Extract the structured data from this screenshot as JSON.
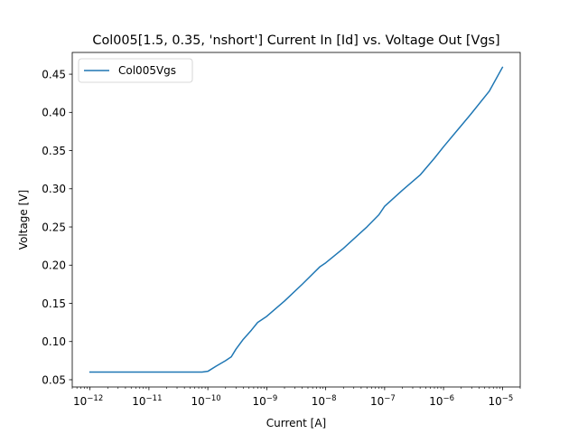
{
  "chart_data": {
    "type": "line",
    "title": "Col005[1.5, 0.35, 'nshort'] Current In [Id] vs. Voltage Out [Vgs]",
    "xlabel": "Current [A]",
    "ylabel": "Voltage [V]",
    "xscale": "log",
    "xlim": [
      5e-13,
      2e-05
    ],
    "ylim": [
      0.0405,
      0.4785
    ],
    "x_ticks": [
      {
        "value": 1e-12,
        "mantissa": "10",
        "exponent": "−12"
      },
      {
        "value": 1e-11,
        "mantissa": "10",
        "exponent": "−11"
      },
      {
        "value": 1e-10,
        "mantissa": "10",
        "exponent": "−10"
      },
      {
        "value": 1e-09,
        "mantissa": "10",
        "exponent": "−9"
      },
      {
        "value": 1e-08,
        "mantissa": "10",
        "exponent": "−8"
      },
      {
        "value": 1e-07,
        "mantissa": "10",
        "exponent": "−7"
      },
      {
        "value": 1e-06,
        "mantissa": "10",
        "exponent": "−6"
      },
      {
        "value": 1e-05,
        "mantissa": "10",
        "exponent": "−5"
      }
    ],
    "y_ticks": [
      {
        "value": 0.05,
        "label": "0.05"
      },
      {
        "value": 0.1,
        "label": "0.10"
      },
      {
        "value": 0.15,
        "label": "0.15"
      },
      {
        "value": 0.2,
        "label": "0.20"
      },
      {
        "value": 0.25,
        "label": "0.25"
      },
      {
        "value": 0.3,
        "label": "0.30"
      },
      {
        "value": 0.35,
        "label": "0.35"
      },
      {
        "value": 0.4,
        "label": "0.40"
      },
      {
        "value": 0.45,
        "label": "0.45"
      }
    ],
    "legend": {
      "placement": "upper-left"
    },
    "grid": false,
    "series": [
      {
        "name": "Col005Vgs",
        "color": "#1f77b4",
        "x": [
          1e-12,
          3e-12,
          1e-11,
          3e-11,
          5e-11,
          8e-11,
          1e-10,
          1.4e-10,
          2e-10,
          2.5e-10,
          3e-10,
          4e-10,
          5.5e-10,
          7e-10,
          8e-10,
          1e-09,
          2e-09,
          4e-09,
          8e-09,
          1e-08,
          2e-08,
          5e-08,
          8e-08,
          1e-07,
          2e-07,
          4e-07,
          7e-07,
          1e-06,
          3e-06,
          6e-06,
          1e-05
        ],
        "y": [
          0.06,
          0.06,
          0.06,
          0.06,
          0.06,
          0.06,
          0.061,
          0.068,
          0.075,
          0.08,
          0.09,
          0.103,
          0.115,
          0.125,
          0.128,
          0.133,
          0.153,
          0.175,
          0.198,
          0.203,
          0.222,
          0.25,
          0.266,
          0.277,
          0.298,
          0.318,
          0.34,
          0.355,
          0.399,
          0.428,
          0.459
        ]
      }
    ]
  }
}
